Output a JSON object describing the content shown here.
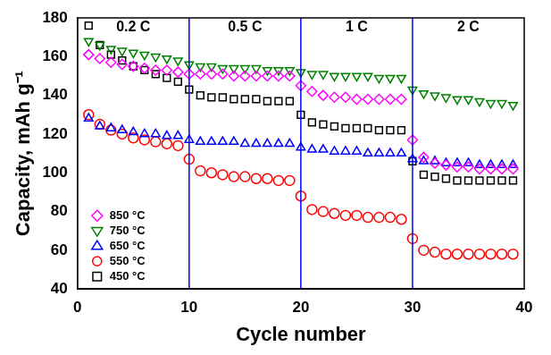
{
  "chart_data": {
    "type": "scatter",
    "xlabel": "Cycle number",
    "ylabel": "Capacity, mAh g⁻¹",
    "xlim": [
      0,
      40
    ],
    "xticks": [
      0,
      10,
      20,
      30,
      40
    ],
    "ylim": [
      40,
      180
    ],
    "yticks": [
      40,
      60,
      80,
      100,
      120,
      140,
      160,
      180
    ],
    "grid": false,
    "legend": "lower left",
    "vlines": [
      10,
      20,
      30
    ],
    "annotations": [
      {
        "text": "0.2 C",
        "x": 5,
        "y": 175
      },
      {
        "text": "0.5 C",
        "x": 15,
        "y": 175
      },
      {
        "text": "1 C",
        "x": 25,
        "y": 175
      },
      {
        "text": "2 C",
        "x": 35,
        "y": 175
      }
    ],
    "x": [
      1,
      2,
      3,
      4,
      5,
      6,
      7,
      8,
      9,
      10,
      11,
      12,
      13,
      14,
      15,
      16,
      17,
      18,
      19,
      20,
      21,
      22,
      23,
      24,
      25,
      26,
      27,
      28,
      29,
      30,
      31,
      32,
      33,
      34,
      35,
      36,
      37,
      38,
      39
    ],
    "series": [
      {
        "name": "850 °C",
        "color": "#ff00ff",
        "marker": "diamond",
        "values": [
          161,
          159,
          157,
          156,
          155,
          154,
          153,
          153,
          152,
          151,
          151,
          151,
          151,
          150,
          150,
          150,
          150,
          150,
          150,
          145,
          142,
          140,
          139,
          139,
          138,
          138,
          138,
          138,
          138,
          117,
          108,
          105,
          104,
          103,
          103,
          102,
          102,
          102,
          102
        ]
      },
      {
        "name": "750 °C",
        "color": "#008000",
        "marker": "triangle-down",
        "values": [
          168,
          166,
          164,
          163,
          162,
          161,
          160,
          159,
          158,
          156,
          155,
          155,
          154,
          154,
          154,
          154,
          153,
          153,
          153,
          152,
          151,
          151,
          150,
          150,
          150,
          150,
          149,
          149,
          149,
          143,
          141,
          140,
          139,
          138,
          138,
          137,
          136,
          136,
          135
        ]
      },
      {
        "name": "650 °C",
        "color": "#0000ff",
        "marker": "triangle-up",
        "values": [
          128,
          124,
          123,
          122,
          121,
          120,
          120,
          119,
          119,
          117,
          116,
          116,
          116,
          116,
          115,
          115,
          115,
          115,
          115,
          113,
          112,
          112,
          111,
          111,
          111,
          110,
          110,
          110,
          110,
          107,
          106,
          106,
          105,
          105,
          105,
          104,
          104,
          104,
          104
        ]
      },
      {
        "name": "550 °C",
        "color": "#ff0000",
        "marker": "circle",
        "values": [
          130,
          125,
          122,
          120,
          118,
          117,
          116,
          115,
          114,
          107,
          101,
          100,
          99,
          98,
          98,
          97,
          97,
          96,
          96,
          88,
          81,
          80,
          79,
          78,
          78,
          77,
          77,
          77,
          76,
          66,
          60,
          59,
          58,
          58,
          58,
          58,
          58,
          58,
          58
        ]
      },
      {
        "name": "450 °C",
        "color": "#000000",
        "marker": "square",
        "values": [
          176,
          166,
          161,
          158,
          155,
          153,
          151,
          149,
          147,
          143,
          140,
          139,
          139,
          138,
          138,
          138,
          137,
          137,
          137,
          130,
          126,
          125,
          124,
          123,
          123,
          123,
          122,
          122,
          122,
          106,
          99,
          98,
          97,
          96,
          96,
          96,
          96,
          96,
          96
        ]
      }
    ]
  }
}
